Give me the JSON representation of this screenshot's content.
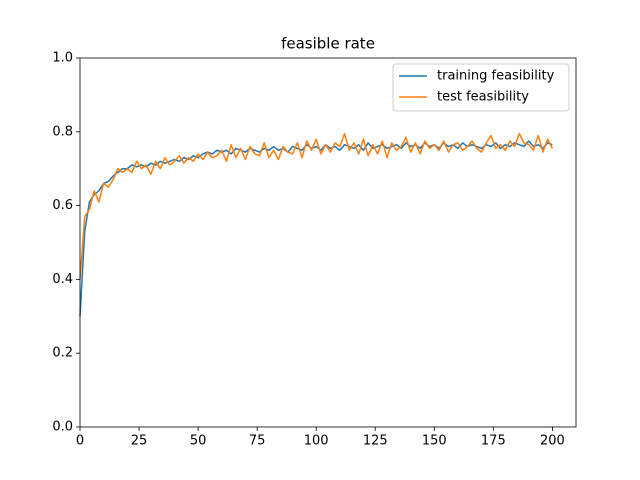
{
  "chart_data": {
    "type": "line",
    "title": "feasible rate",
    "x": [
      0,
      2,
      4,
      6,
      8,
      10,
      12,
      14,
      16,
      18,
      20,
      22,
      24,
      26,
      28,
      30,
      32,
      34,
      36,
      38,
      40,
      42,
      44,
      46,
      48,
      50,
      52,
      54,
      56,
      58,
      60,
      62,
      64,
      66,
      68,
      70,
      72,
      74,
      76,
      78,
      80,
      82,
      84,
      86,
      88,
      90,
      92,
      94,
      96,
      98,
      100,
      102,
      104,
      106,
      108,
      110,
      112,
      114,
      116,
      118,
      120,
      122,
      124,
      126,
      128,
      130,
      132,
      134,
      136,
      138,
      140,
      142,
      144,
      146,
      148,
      150,
      152,
      154,
      156,
      158,
      160,
      162,
      164,
      166,
      168,
      170,
      172,
      174,
      176,
      178,
      180,
      182,
      184,
      186,
      188,
      190,
      192,
      194,
      196,
      198,
      200
    ],
    "series": [
      {
        "name": "training feasibility",
        "color": "#1f77b4",
        "values": [
          0.3,
          0.53,
          0.61,
          0.63,
          0.64,
          0.66,
          0.665,
          0.68,
          0.69,
          0.7,
          0.7,
          0.71,
          0.705,
          0.71,
          0.705,
          0.715,
          0.71,
          0.72,
          0.715,
          0.72,
          0.725,
          0.72,
          0.73,
          0.725,
          0.735,
          0.73,
          0.74,
          0.745,
          0.74,
          0.75,
          0.745,
          0.75,
          0.74,
          0.755,
          0.75,
          0.745,
          0.755,
          0.75,
          0.745,
          0.755,
          0.75,
          0.76,
          0.75,
          0.755,
          0.745,
          0.76,
          0.755,
          0.75,
          0.765,
          0.755,
          0.76,
          0.75,
          0.765,
          0.755,
          0.76,
          0.75,
          0.765,
          0.76,
          0.755,
          0.765,
          0.75,
          0.77,
          0.755,
          0.76,
          0.765,
          0.755,
          0.76,
          0.765,
          0.755,
          0.77,
          0.76,
          0.765,
          0.755,
          0.77,
          0.76,
          0.765,
          0.755,
          0.77,
          0.76,
          0.765,
          0.755,
          0.77,
          0.76,
          0.765,
          0.76,
          0.755,
          0.765,
          0.76,
          0.77,
          0.755,
          0.765,
          0.76,
          0.77,
          0.765,
          0.76,
          0.775,
          0.76,
          0.765,
          0.755,
          0.77,
          0.765
        ]
      },
      {
        "name": "test feasibility",
        "color": "#ff7f0e",
        "values": [
          0.4,
          0.57,
          0.59,
          0.64,
          0.61,
          0.66,
          0.65,
          0.67,
          0.7,
          0.69,
          0.7,
          0.69,
          0.72,
          0.7,
          0.71,
          0.685,
          0.72,
          0.7,
          0.73,
          0.71,
          0.72,
          0.735,
          0.715,
          0.73,
          0.72,
          0.74,
          0.725,
          0.745,
          0.73,
          0.735,
          0.75,
          0.72,
          0.765,
          0.73,
          0.755,
          0.725,
          0.76,
          0.74,
          0.735,
          0.77,
          0.73,
          0.75,
          0.725,
          0.76,
          0.745,
          0.74,
          0.77,
          0.73,
          0.775,
          0.75,
          0.78,
          0.74,
          0.765,
          0.745,
          0.77,
          0.76,
          0.795,
          0.75,
          0.77,
          0.74,
          0.78,
          0.735,
          0.765,
          0.74,
          0.775,
          0.73,
          0.77,
          0.75,
          0.76,
          0.785,
          0.745,
          0.77,
          0.74,
          0.775,
          0.755,
          0.765,
          0.75,
          0.775,
          0.745,
          0.765,
          0.77,
          0.75,
          0.76,
          0.775,
          0.755,
          0.745,
          0.77,
          0.79,
          0.755,
          0.765,
          0.75,
          0.775,
          0.76,
          0.795,
          0.77,
          0.765,
          0.75,
          0.79,
          0.745,
          0.78,
          0.755
        ]
      }
    ],
    "xlim": [
      0,
      210
    ],
    "ylim": [
      0,
      1
    ],
    "xticks": [
      0,
      25,
      50,
      75,
      100,
      125,
      150,
      175,
      200
    ],
    "yticks": [
      {
        "value": 0,
        "label": "0.0"
      },
      0.2,
      0.4,
      0.6,
      0.8,
      {
        "value": 1,
        "label": "1.0"
      }
    ],
    "legend": "upper right"
  }
}
